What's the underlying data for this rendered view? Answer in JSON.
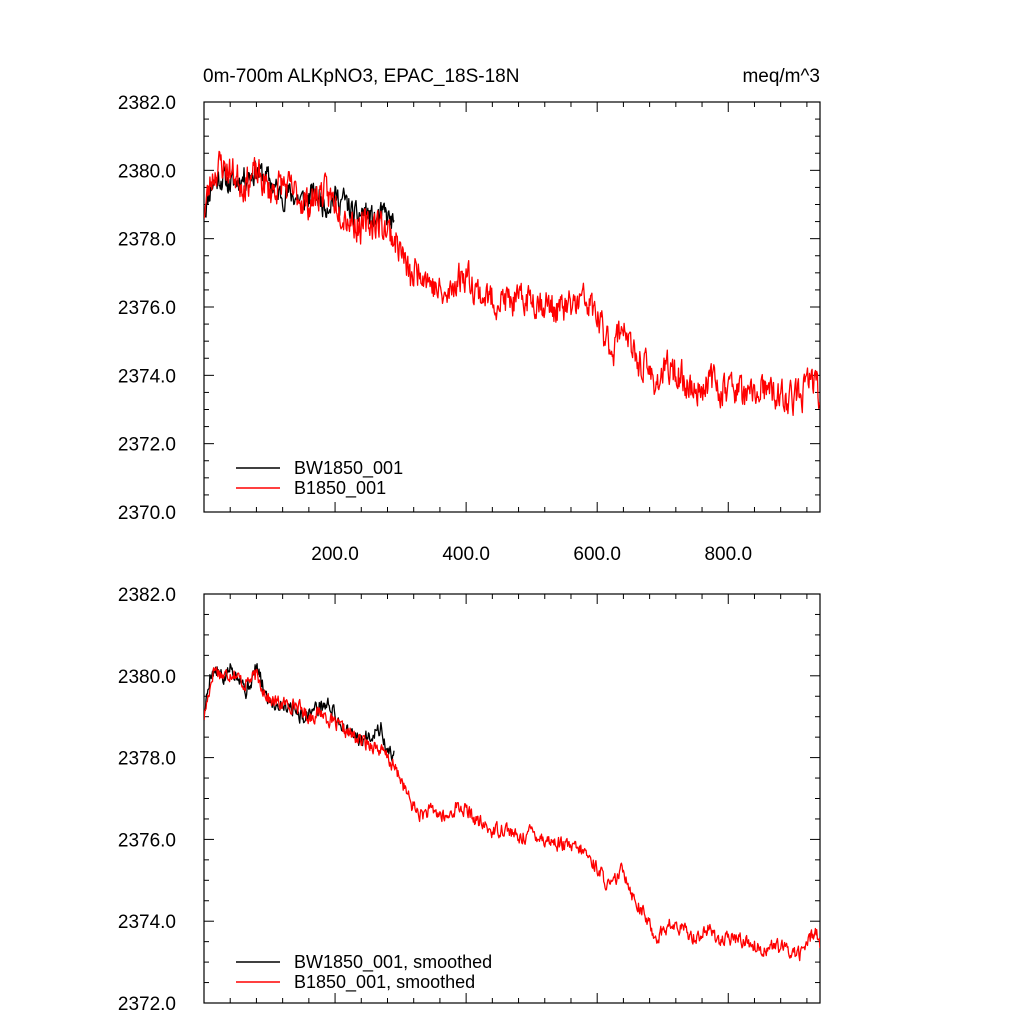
{
  "chart_data": [
    {
      "type": "line",
      "title": "0m-700m ALKpNO3, EPAC_18S-18N",
      "units": "meq/m^3",
      "xlim": [
        0,
        940
      ],
      "ylim": [
        2370,
        2382
      ],
      "x_ticks": [
        200,
        400,
        600,
        800
      ],
      "x_tick_labels": [
        "200.0",
        "400.0",
        "600.0",
        "800.0"
      ],
      "y_ticks": [
        2370,
        2372,
        2374,
        2376,
        2378,
        2380,
        2382
      ],
      "y_tick_labels": [
        "2370.0",
        "2372.0",
        "2374.0",
        "2376.0",
        "2378.0",
        "2380.0",
        "2382.0"
      ],
      "legend_position": "bottom-left",
      "series": [
        {
          "name": "BW1850_001",
          "color": "#000000",
          "x_range": [
            0,
            290
          ],
          "noise": 0.6,
          "seed": 11,
          "anchors": [
            [
              0,
              2378.8
            ],
            [
              12,
              2379.6
            ],
            [
              25,
              2379.8
            ],
            [
              40,
              2379.6
            ],
            [
              60,
              2379.8
            ],
            [
              80,
              2380.0
            ],
            [
              100,
              2379.7
            ],
            [
              115,
              2379.3
            ],
            [
              135,
              2379.3
            ],
            [
              150,
              2379.1
            ],
            [
              170,
              2379.3
            ],
            [
              185,
              2379.0
            ],
            [
              200,
              2379.2
            ],
            [
              215,
              2379.1
            ],
            [
              230,
              2378.6
            ],
            [
              245,
              2378.8
            ],
            [
              260,
              2378.5
            ],
            [
              275,
              2378.7
            ],
            [
              290,
              2378.4
            ]
          ]
        },
        {
          "name": "B1850_001",
          "color": "#ff0000",
          "x_range": [
            0,
            940
          ],
          "noise": 0.75,
          "seed": 23,
          "anchors": [
            [
              0,
              2378.8
            ],
            [
              12,
              2379.8
            ],
            [
              25,
              2380.2
            ],
            [
              45,
              2379.9
            ],
            [
              60,
              2379.6
            ],
            [
              80,
              2379.9
            ],
            [
              100,
              2379.4
            ],
            [
              120,
              2379.6
            ],
            [
              140,
              2379.3
            ],
            [
              160,
              2379.0
            ],
            [
              180,
              2379.4
            ],
            [
              200,
              2379.1
            ],
            [
              220,
              2378.6
            ],
            [
              240,
              2378.3
            ],
            [
              260,
              2378.5
            ],
            [
              280,
              2378.3
            ],
            [
              300,
              2377.7
            ],
            [
              315,
              2376.8
            ],
            [
              330,
              2377.2
            ],
            [
              350,
              2376.6
            ],
            [
              370,
              2376.2
            ],
            [
              385,
              2376.8
            ],
            [
              400,
              2377.0
            ],
            [
              420,
              2376.4
            ],
            [
              440,
              2376.2
            ],
            [
              460,
              2376.2
            ],
            [
              480,
              2376.1
            ],
            [
              500,
              2376.3
            ],
            [
              520,
              2376.1
            ],
            [
              540,
              2375.9
            ],
            [
              560,
              2376.0
            ],
            [
              580,
              2376.2
            ],
            [
              595,
              2375.9
            ],
            [
              610,
              2375.2
            ],
            [
              625,
              2374.8
            ],
            [
              640,
              2375.6
            ],
            [
              655,
              2374.5
            ],
            [
              670,
              2374.3
            ],
            [
              690,
              2373.8
            ],
            [
              710,
              2374.2
            ],
            [
              730,
              2373.9
            ],
            [
              750,
              2373.5
            ],
            [
              770,
              2373.9
            ],
            [
              790,
              2373.6
            ],
            [
              810,
              2373.7
            ],
            [
              830,
              2373.3
            ],
            [
              850,
              2373.6
            ],
            [
              870,
              2373.4
            ],
            [
              890,
              2373.3
            ],
            [
              910,
              2373.4
            ],
            [
              925,
              2373.8
            ],
            [
              935,
              2373.9
            ],
            [
              940,
              2373.0
            ]
          ]
        }
      ]
    },
    {
      "type": "line",
      "xlim": [
        0,
        940
      ],
      "ylim": [
        2372,
        2382
      ],
      "y_ticks": [
        2372,
        2374,
        2376,
        2378,
        2380,
        2382
      ],
      "y_tick_labels": [
        "2372.0",
        "2374.0",
        "2376.0",
        "2378.0",
        "2380.0",
        "2382.0"
      ],
      "legend_position": "bottom-left",
      "series": [
        {
          "name": "BW1850_001, smoothed",
          "color": "#000000",
          "x_range": [
            0,
            290
          ],
          "noise": 0.3,
          "seed": 5,
          "anchors": [
            [
              0,
              2379.0
            ],
            [
              10,
              2380.1
            ],
            [
              20,
              2380.1
            ],
            [
              30,
              2379.9
            ],
            [
              40,
              2380.2
            ],
            [
              55,
              2380.0
            ],
            [
              65,
              2379.6
            ],
            [
              80,
              2380.2
            ],
            [
              95,
              2379.5
            ],
            [
              110,
              2379.3
            ],
            [
              130,
              2379.3
            ],
            [
              150,
              2379.0
            ],
            [
              170,
              2379.2
            ],
            [
              190,
              2379.3
            ],
            [
              205,
              2378.9
            ],
            [
              220,
              2378.6
            ],
            [
              240,
              2378.4
            ],
            [
              255,
              2378.6
            ],
            [
              270,
              2378.7
            ],
            [
              280,
              2378.1
            ],
            [
              290,
              2378.1
            ]
          ]
        },
        {
          "name": "B1850_001, smoothed",
          "color": "#ff0000",
          "x_range": [
            0,
            940
          ],
          "noise": 0.28,
          "seed": 17,
          "anchors": [
            [
              0,
              2379.0
            ],
            [
              15,
              2380.2
            ],
            [
              30,
              2380.0
            ],
            [
              45,
              2380.1
            ],
            [
              60,
              2379.8
            ],
            [
              80,
              2380.0
            ],
            [
              100,
              2379.4
            ],
            [
              120,
              2379.3
            ],
            [
              140,
              2379.3
            ],
            [
              160,
              2379.0
            ],
            [
              180,
              2379.1
            ],
            [
              200,
              2378.8
            ],
            [
              220,
              2378.6
            ],
            [
              240,
              2378.4
            ],
            [
              260,
              2378.3
            ],
            [
              280,
              2378.0
            ],
            [
              300,
              2377.5
            ],
            [
              315,
              2376.9
            ],
            [
              330,
              2376.6
            ],
            [
              350,
              2376.7
            ],
            [
              370,
              2376.5
            ],
            [
              385,
              2376.8
            ],
            [
              400,
              2376.7
            ],
            [
              420,
              2376.4
            ],
            [
              440,
              2376.2
            ],
            [
              460,
              2376.3
            ],
            [
              480,
              2376.0
            ],
            [
              500,
              2376.2
            ],
            [
              520,
              2376.0
            ],
            [
              540,
              2375.9
            ],
            [
              560,
              2375.8
            ],
            [
              580,
              2375.7
            ],
            [
              600,
              2375.3
            ],
            [
              620,
              2374.8
            ],
            [
              640,
              2375.3
            ],
            [
              655,
              2374.6
            ],
            [
              670,
              2374.2
            ],
            [
              690,
              2373.6
            ],
            [
              710,
              2373.9
            ],
            [
              730,
              2373.8
            ],
            [
              750,
              2373.6
            ],
            [
              770,
              2373.8
            ],
            [
              790,
              2373.5
            ],
            [
              810,
              2373.6
            ],
            [
              830,
              2373.5
            ],
            [
              850,
              2373.3
            ],
            [
              870,
              2373.4
            ],
            [
              890,
              2373.3
            ],
            [
              910,
              2373.2
            ],
            [
              925,
              2373.6
            ],
            [
              935,
              2373.8
            ],
            [
              940,
              2373.4
            ]
          ]
        }
      ]
    }
  ]
}
